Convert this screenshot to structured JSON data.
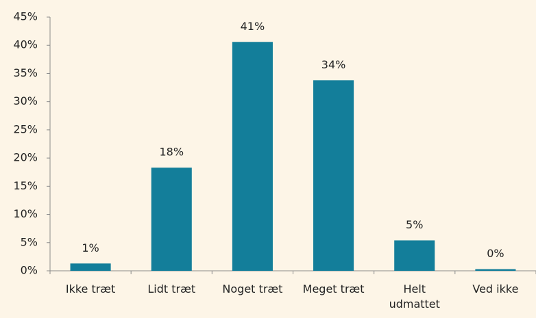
{
  "chart_data": {
    "type": "bar",
    "categories": [
      "Ikke træt",
      "Lidt træt",
      "Noget træt",
      "Meget træt",
      "Helt udmattet",
      "Ved ikke"
    ],
    "values": [
      1.3,
      18.3,
      40.6,
      33.8,
      5.4,
      0.3
    ],
    "value_labels": [
      "1%",
      "18%",
      "41%",
      "34%",
      "5%",
      "0%"
    ],
    "color": "#137e9a",
    "ylim": [
      0,
      45
    ],
    "yticks": [
      {
        "value": 0,
        "label": "0%"
      },
      {
        "value": 5,
        "label": "5%"
      },
      {
        "value": 10,
        "label": "10%"
      },
      {
        "value": 15,
        "label": "15%"
      },
      {
        "value": 20,
        "label": "20%"
      },
      {
        "value": 25,
        "label": "25%"
      },
      {
        "value": 30,
        "label": "30%"
      },
      {
        "value": 35,
        "label": "35%"
      },
      {
        "value": 40,
        "label": "40%"
      },
      {
        "value": 45,
        "label": "45%"
      }
    ],
    "grid": false
  }
}
